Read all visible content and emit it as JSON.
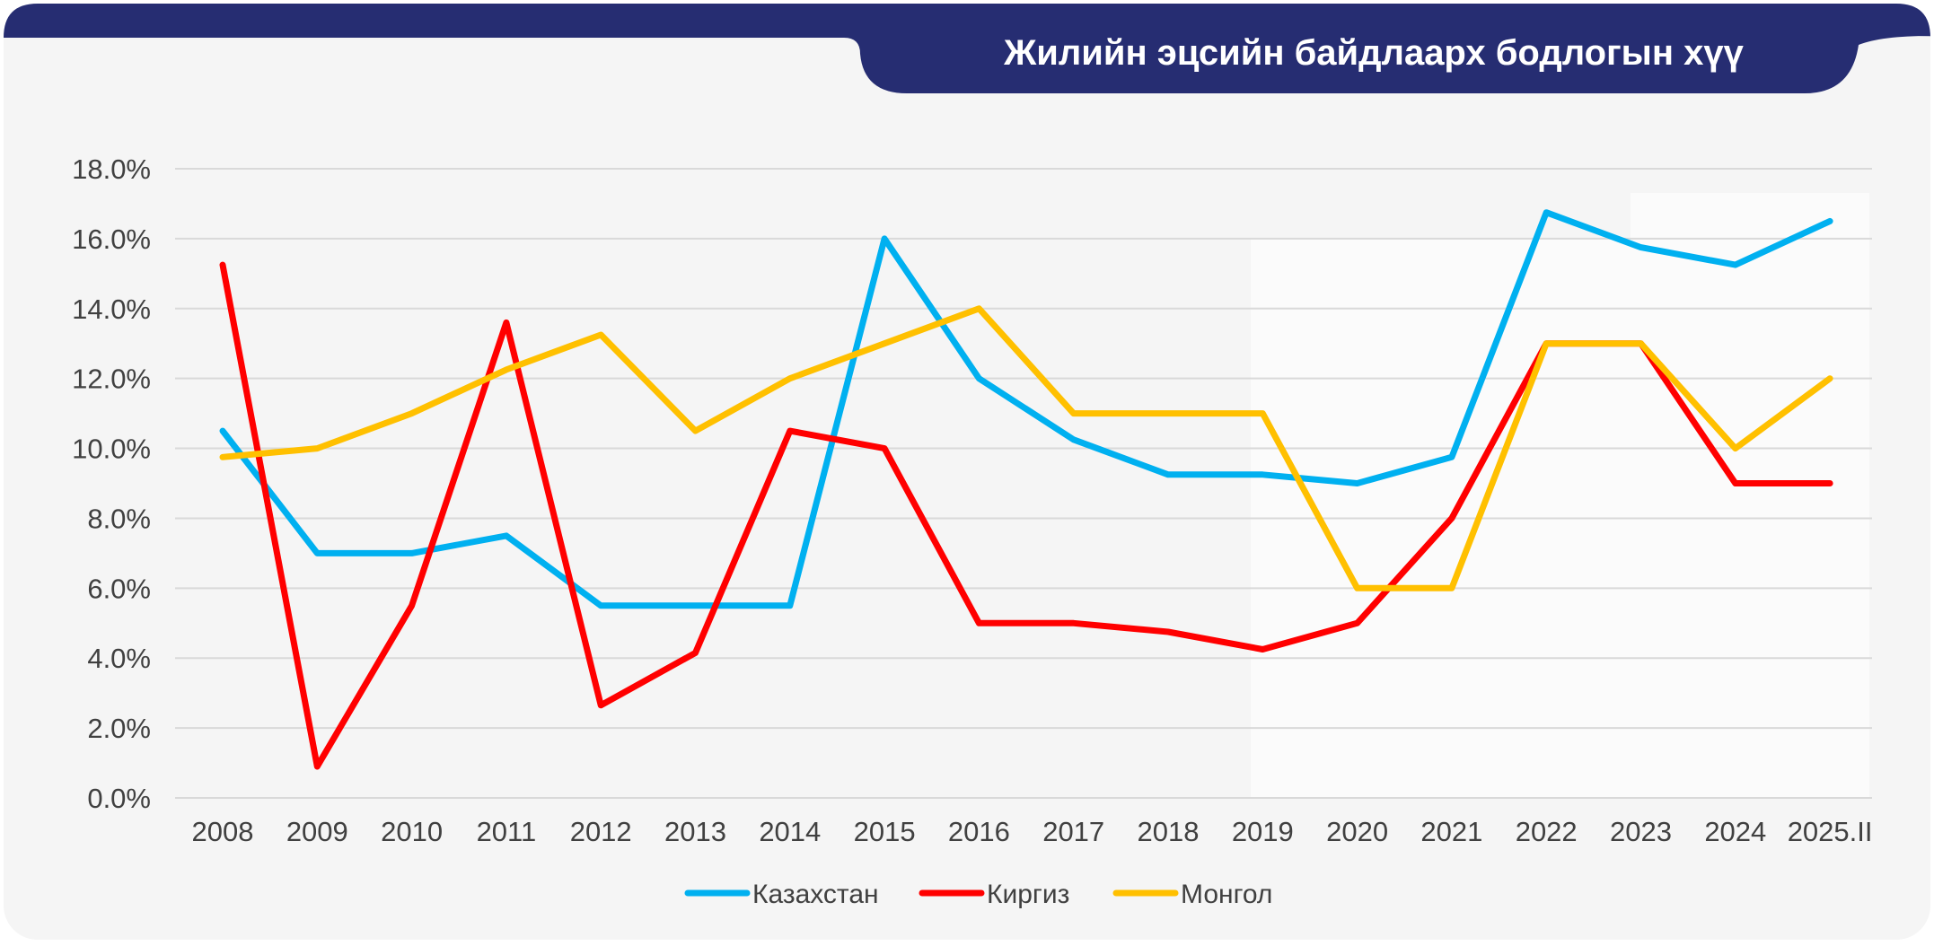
{
  "colors": {
    "banner": "#262d72",
    "card_background": "#f5f5f5",
    "gridline": "#d9d9d9",
    "axis_text": "#404040"
  },
  "chart_data": {
    "type": "line",
    "title": "Жилийн эцсийн байдлаарх бодлогын хүү",
    "xlabel": "",
    "ylabel": "",
    "categories": [
      "2008",
      "2009",
      "2010",
      "2011",
      "2012",
      "2013",
      "2014",
      "2015",
      "2016",
      "2017",
      "2018",
      "2019",
      "2020",
      "2021",
      "2022",
      "2023",
      "2024",
      "2025.II"
    ],
    "ylim": [
      0,
      18
    ],
    "yticks": [
      0,
      2,
      4,
      6,
      8,
      10,
      12,
      14,
      16,
      18
    ],
    "ytick_labels": [
      "0.0%",
      "2.0%",
      "4.0%",
      "6.0%",
      "8.0%",
      "10.0%",
      "12.0%",
      "14.0%",
      "16.0%",
      "18.0%"
    ],
    "grid": true,
    "legend_position": "bottom",
    "series": [
      {
        "name": "Казахстан",
        "color": "#00b0f0",
        "values": [
          10.5,
          7.0,
          7.0,
          7.5,
          5.5,
          5.5,
          5.5,
          16.0,
          12.0,
          10.25,
          9.25,
          9.25,
          9.0,
          9.75,
          16.75,
          15.75,
          15.25,
          16.5
        ]
      },
      {
        "name": "Киргиз",
        "color": "#ff0000",
        "values": [
          15.25,
          0.9,
          5.5,
          13.6,
          2.65,
          4.15,
          10.5,
          10.0,
          5.0,
          5.0,
          4.75,
          4.25,
          5.0,
          8.0,
          13.0,
          13.0,
          9.0,
          9.0
        ]
      },
      {
        "name": "Монгол",
        "color": "#ffc000",
        "values": [
          9.75,
          10.0,
          11.0,
          12.25,
          13.25,
          10.5,
          12.0,
          13.0,
          14.0,
          11.0,
          11.0,
          11.0,
          6.0,
          6.0,
          13.0,
          13.0,
          10.0,
          12.0
        ]
      }
    ]
  }
}
